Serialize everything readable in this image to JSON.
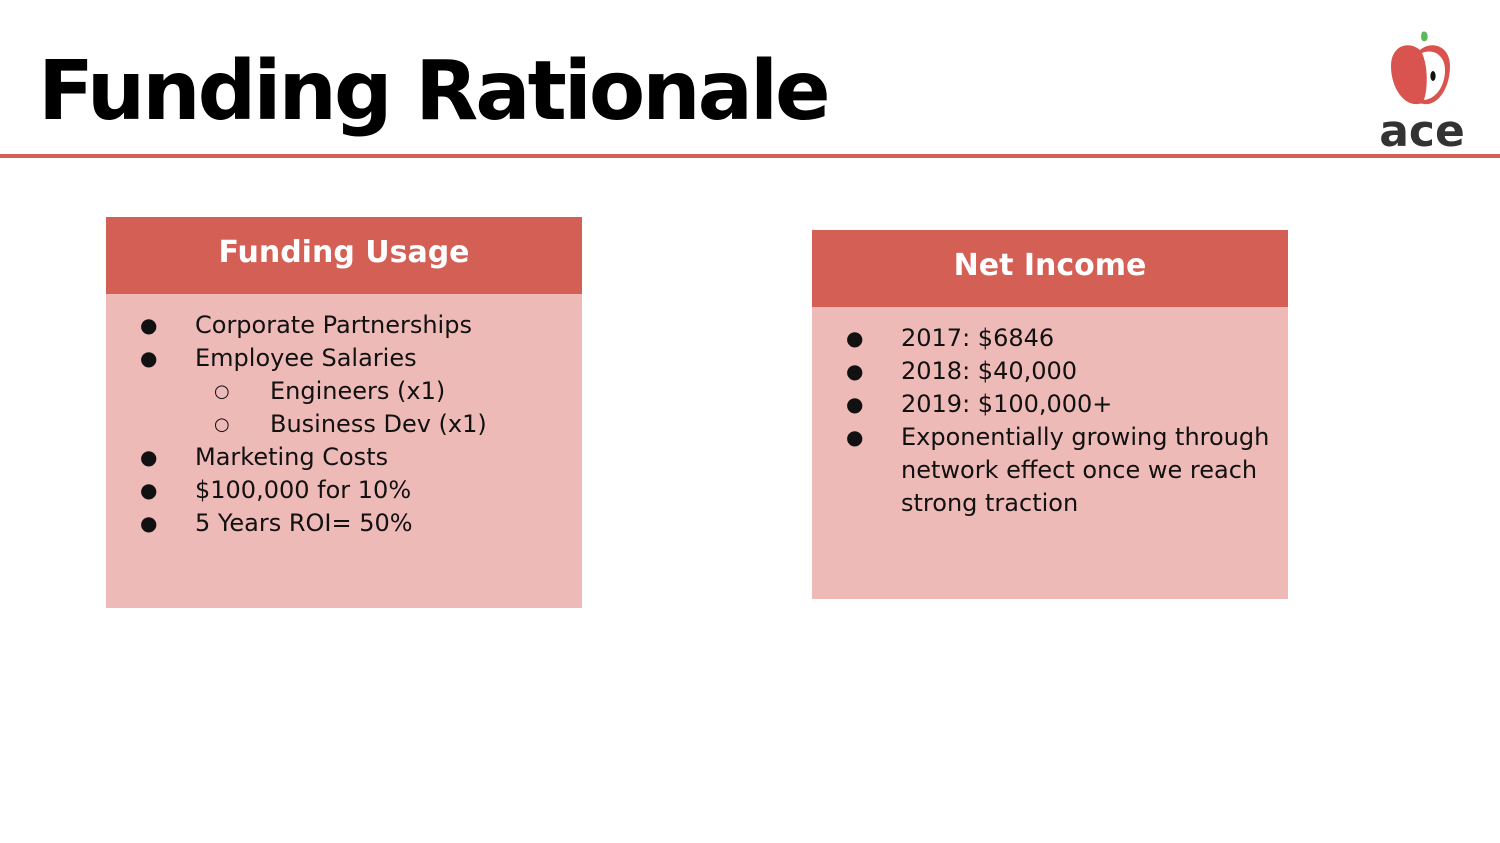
{
  "slide": {
    "title": "Funding Rationale"
  },
  "logo": {
    "word": "ace",
    "apple_color": "#d9534f",
    "leaf_color": "#5cb85c"
  },
  "colors": {
    "accent": "#d35f55",
    "card_body": "#eebab8"
  },
  "funding_usage": {
    "title": "Funding Usage",
    "items": [
      {
        "bullet": "●",
        "text": "Corporate Partnerships"
      },
      {
        "bullet": "●",
        "text": "Employee Salaries"
      },
      {
        "bullet": "○",
        "text": "Engineers (x1)"
      },
      {
        "bullet": "○",
        "text": "Business Dev (x1)"
      },
      {
        "bullet": "●",
        "text": "Marketing Costs"
      },
      {
        "bullet": "●",
        "text": "$100,000 for 10%"
      },
      {
        "bullet": "●",
        "text": "5 Years ROI= 50%"
      }
    ]
  },
  "net_income": {
    "title": "Net Income",
    "items": [
      {
        "bullet": "●",
        "text": "2017: $6846"
      },
      {
        "bullet": "●",
        "text": "2018: $40,000"
      },
      {
        "bullet": "●",
        "text": "2019: $100,000+"
      },
      {
        "bullet": "●",
        "text": "Exponentially growing through network effect once we reach strong traction"
      }
    ]
  }
}
